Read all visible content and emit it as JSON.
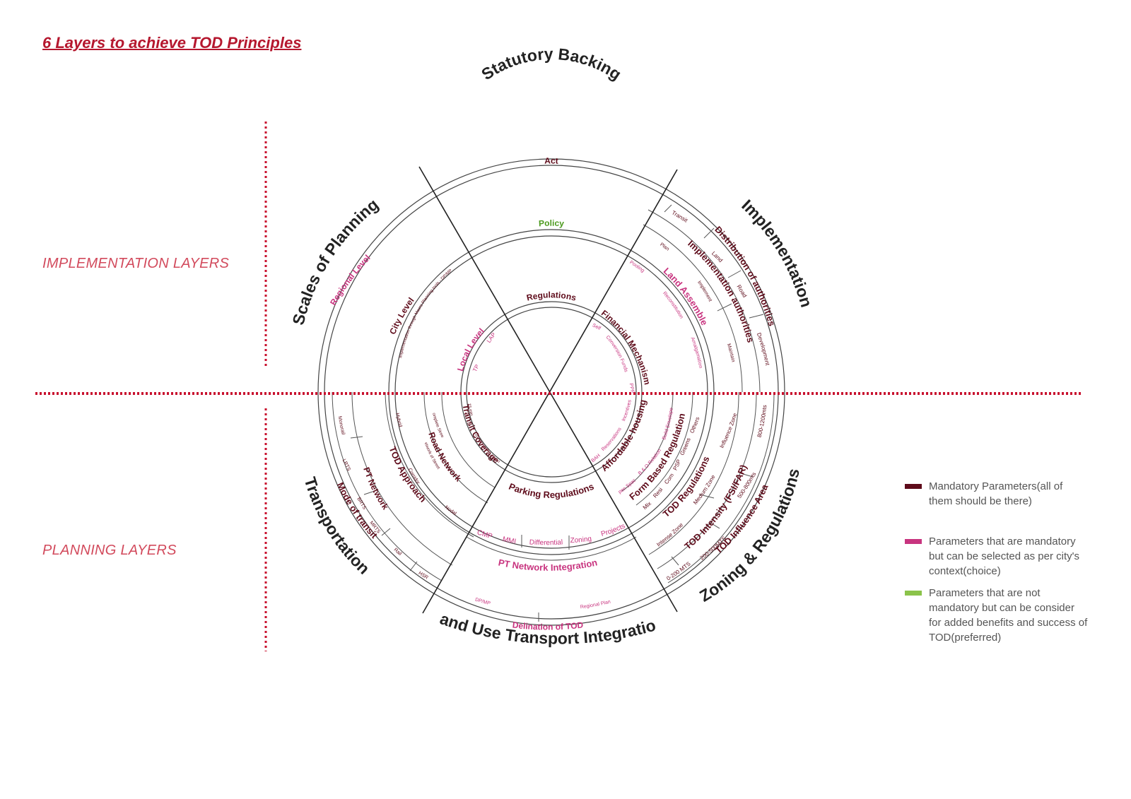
{
  "title": "6 Layers to achieve TOD Principles",
  "side_labels": {
    "implementation": "IMPLEMENTATION LAYERS",
    "planning": "PLANNING  LAYERS"
  },
  "colors": {
    "mandatory": "#5e0b1a",
    "choice": "#c8347f",
    "preferred": "#8bc34a",
    "accent": "#c8102e"
  },
  "sectors": {
    "statutory": "Statutory Backing",
    "implementation": "Implementation",
    "zoning": "Zoning & Regulations",
    "landuse": "Land Use Transport Integration",
    "transportation": "Transportation",
    "scales": "Scales of Planning"
  },
  "labels": {
    "act": "Act",
    "policy": "Policy",
    "regulations": "Regulations",
    "regional_level": "Regional Level",
    "city_level": "City Level",
    "city_detail": "Implementation through Macro Planning tools - DP/MP",
    "local_level": "Local Level",
    "lap": "LAP",
    "tp": "TP",
    "distribution": "Distribution of authorities",
    "transit": "Transit",
    "land": "Land",
    "road": "Road",
    "development": "Development",
    "impl_authorities": "Implementation authorities",
    "plan": "Plan",
    "implement": "Implement",
    "maintain": "Maintain",
    "land_assembly": "Land Assemble",
    "pooling": "Pooling",
    "reconstitution": "Reconstitution",
    "amalgamation": "Amalgamation",
    "financial": "Financial Mechanism",
    "self": "Self",
    "conversion_funds": "Conversion Funds",
    "ppp": "PPP",
    "tod_influence": "TOD Influence Area",
    "r0_200": "0-200 MTS",
    "r200_500": "200-500MTS",
    "r500_800": "500-800mts",
    "r800_1200": "800-1200mts",
    "tod_intensity": "TOD Intensity (FSI/FAR)",
    "intense_zone": "Intense Zone",
    "medium_zone": "Medium Zone",
    "influence_zone": "Influence Zone",
    "tod_regulations": "TOD Regulations",
    "mix": "Mix",
    "resi": "Resi",
    "com": "Com",
    "psp": "PSP",
    "greens": "Greens",
    "others": "Others",
    "form_based": "Form Based Regulation",
    "open_space": "Open Space",
    "bo_relation": "B & O Relation",
    "build_envelope": "Build Envelope",
    "affordable": "Affordable housing",
    "bah": "BAH",
    "reservations": "Reservations",
    "incentives": "Incentives",
    "parking": "Parking Regulations",
    "delineation": "Delination of TOD",
    "dpmp": "DP/MP",
    "regional_plan": "Regional Plan",
    "pt_network_integration": "PT Network Integration",
    "cmp": "CMP",
    "mmi": "MMI",
    "differential": "Differential",
    "zoning": "Zoning",
    "projects": "Projects",
    "mode_transit": "Mode of transit",
    "hsr": "HSR",
    "rail": "Rail",
    "mrts": "MRTS",
    "brts": "BRTS",
    "lrts": "LRTS",
    "monorail": "Monorail",
    "pt_network": "PT Network",
    "tod_approach": "TOD Approach",
    "nodal": "Nodal",
    "corridor": "Corridor",
    "hybrid": "Hybrid",
    "road_network": "Road Network",
    "network_streets": "Network of Streets",
    "complete_streets": "Complete Streets",
    "transit_coverage": "Transit Coverage",
    "five_min": "5 Min",
    "ten_min": "10 min walk",
    "fifteen_min": "15 min"
  },
  "legend": [
    {
      "text": "Mandatory Parameters(all of them should be there)",
      "color": "#5e0b1a"
    },
    {
      "text": "Parameters that are mandatory but can be selected as per city's context(choice)",
      "color": "#c8347f"
    },
    {
      "text": "Parameters that are not mandatory but can be consider for added benefits and success of TOD(preferred)",
      "color": "#8bc34a"
    }
  ]
}
